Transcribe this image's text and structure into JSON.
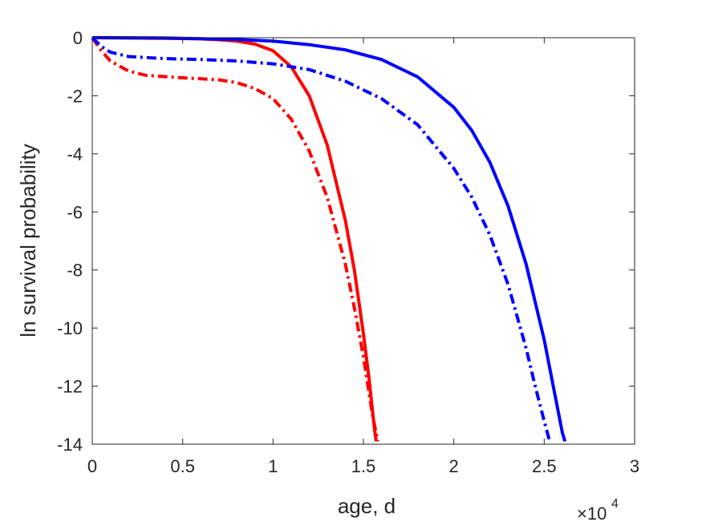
{
  "chart_data": {
    "type": "line",
    "xlabel": "age, d",
    "ylabel": "ln survival probability",
    "x_exponent_label": "×10",
    "x_exponent_power": "4",
    "xlim": [
      0,
      3
    ],
    "ylim": [
      -14,
      0
    ],
    "x_ticks": [
      0,
      0.5,
      1,
      1.5,
      2,
      2.5,
      3
    ],
    "x_tick_labels": [
      "0",
      "0.5",
      "1",
      "1.5",
      "2",
      "2.5",
      "3"
    ],
    "y_ticks": [
      0,
      -2,
      -4,
      -6,
      -8,
      -10,
      -12,
      -14
    ],
    "y_tick_labels": [
      "0",
      "-2",
      "-4",
      "-6",
      "-8",
      "-10",
      "-12",
      "-14"
    ],
    "grid": false,
    "series": [
      {
        "color": "#ff0000",
        "style": "solid",
        "x": [
          0,
          0.2,
          0.4,
          0.6,
          0.7,
          0.8,
          0.9,
          1.0,
          1.1,
          1.2,
          1.3,
          1.4,
          1.45,
          1.5,
          1.53,
          1.56,
          1.57
        ],
        "y": [
          0,
          -0.01,
          -0.02,
          -0.04,
          -0.07,
          -0.12,
          -0.22,
          -0.45,
          -1.0,
          -2.0,
          -3.7,
          -6.3,
          -8.0,
          -10.2,
          -11.7,
          -13.4,
          -13.9
        ]
      },
      {
        "color": "#ff0000",
        "style": "dashdot",
        "x": [
          0,
          0.05,
          0.1,
          0.2,
          0.3,
          0.5,
          0.7,
          0.8,
          0.9,
          1.0,
          1.1,
          1.2,
          1.3,
          1.4,
          1.45,
          1.5,
          1.55,
          1.58
        ],
        "y": [
          0,
          -0.45,
          -0.8,
          -1.15,
          -1.3,
          -1.38,
          -1.45,
          -1.55,
          -1.75,
          -2.1,
          -2.8,
          -3.9,
          -5.5,
          -7.8,
          -9.3,
          -11.0,
          -13.0,
          -13.9
        ]
      },
      {
        "color": "#0000ff",
        "style": "solid",
        "x": [
          0,
          0.4,
          0.8,
          1.0,
          1.2,
          1.4,
          1.6,
          1.8,
          2.0,
          2.1,
          2.2,
          2.3,
          2.4,
          2.5,
          2.55,
          2.6,
          2.615
        ],
        "y": [
          0,
          -0.01,
          -0.06,
          -0.12,
          -0.24,
          -0.42,
          -0.75,
          -1.35,
          -2.4,
          -3.2,
          -4.3,
          -5.8,
          -7.8,
          -10.4,
          -12.0,
          -13.6,
          -13.9
        ]
      },
      {
        "color": "#0000ff",
        "style": "dashdot",
        "x": [
          0,
          0.05,
          0.1,
          0.2,
          0.4,
          0.6,
          0.8,
          1.0,
          1.2,
          1.4,
          1.6,
          1.8,
          2.0,
          2.1,
          2.2,
          2.3,
          2.4,
          2.45,
          2.5,
          2.53
        ],
        "y": [
          0,
          -0.3,
          -0.5,
          -0.65,
          -0.72,
          -0.75,
          -0.8,
          -0.9,
          -1.1,
          -1.5,
          -2.1,
          -3.0,
          -4.5,
          -5.5,
          -6.8,
          -8.5,
          -10.7,
          -12.0,
          -13.2,
          -13.9
        ]
      }
    ]
  }
}
